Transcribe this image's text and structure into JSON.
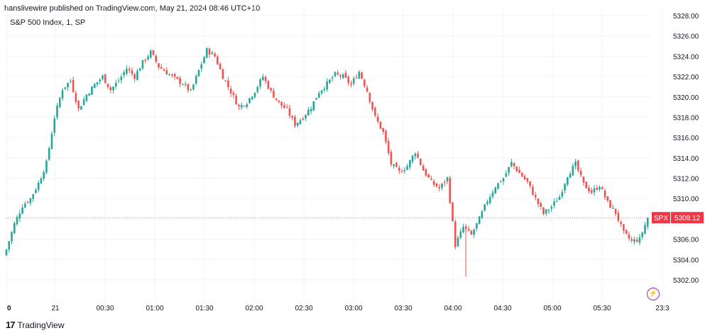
{
  "header": {
    "publisher": "hanslivewire published on TradingView.com, May 21, 2024 08:46 UTC+10",
    "symbol_line": "S&P 500 Index, 1, SP"
  },
  "brand": {
    "logo": "17",
    "name": "TradingView"
  },
  "icons": {
    "lightning": "lightning-icon"
  },
  "colors": {
    "up": "#26a69a",
    "down": "#ef5350",
    "grid": "#f0f3fa",
    "price_tag": "#f23645"
  },
  "chart_data": {
    "type": "candlestick",
    "title": "S&P 500 Index, 1, SP",
    "ylim": [
      5301,
      5328
    ],
    "y_ticks": [
      "5302.00",
      "5304.00",
      "5306.00",
      "5308.00",
      "5310.00",
      "5312.00",
      "5314.00",
      "5316.00",
      "5318.00",
      "5320.00",
      "5322.00",
      "5324.00",
      "5326.00",
      "5328.00"
    ],
    "x_ticks": [
      "0",
      "21",
      "00:30",
      "01:00",
      "01:30",
      "02:00",
      "02:30",
      "03:00",
      "03:30",
      "04:00",
      "04:30",
      "05:00",
      "05:30",
      "23:3"
    ],
    "last_price": {
      "label": "SPX",
      "value": "5308.12"
    },
    "close_path": [
      [
        0,
        5305.0
      ],
      [
        3,
        5307.5
      ],
      [
        6,
        5309.3
      ],
      [
        9,
        5310.0
      ],
      [
        12,
        5311.5
      ],
      [
        15,
        5313.5
      ],
      [
        18,
        5318.0
      ],
      [
        21,
        5320.8
      ],
      [
        24,
        5321.6
      ],
      [
        27,
        5318.8
      ],
      [
        30,
        5320.2
      ],
      [
        33,
        5321.2
      ],
      [
        36,
        5322.0
      ],
      [
        39,
        5320.7
      ],
      [
        42,
        5321.6
      ],
      [
        45,
        5322.8
      ],
      [
        48,
        5322.0
      ],
      [
        51,
        5323.4
      ],
      [
        54,
        5324.4
      ],
      [
        57,
        5323.0
      ],
      [
        60,
        5322.4
      ],
      [
        63,
        5321.8
      ],
      [
        66,
        5321.3
      ],
      [
        69,
        5320.5
      ],
      [
        72,
        5322.6
      ],
      [
        75,
        5324.6
      ],
      [
        78,
        5324.0
      ],
      [
        81,
        5322.0
      ],
      [
        84,
        5320.5
      ],
      [
        87,
        5319.0
      ],
      [
        90,
        5319.5
      ],
      [
        93,
        5320.6
      ],
      [
        96,
        5322.0
      ],
      [
        99,
        5320.5
      ],
      [
        102,
        5319.4
      ],
      [
        105,
        5318.7
      ],
      [
        108,
        5317.3
      ],
      [
        111,
        5318.0
      ],
      [
        114,
        5319.0
      ],
      [
        117,
        5320.5
      ],
      [
        120,
        5321.3
      ],
      [
        123,
        5322.2
      ],
      [
        126,
        5322.0
      ],
      [
        129,
        5321.2
      ],
      [
        132,
        5322.5
      ],
      [
        135,
        5320.6
      ],
      [
        138,
        5318.0
      ],
      [
        141,
        5316.5
      ],
      [
        144,
        5313.4
      ],
      [
        147,
        5312.6
      ],
      [
        150,
        5313.2
      ],
      [
        153,
        5314.6
      ],
      [
        156,
        5312.8
      ],
      [
        159,
        5311.6
      ],
      [
        162,
        5311.0
      ],
      [
        165,
        5312.0
      ],
      [
        168,
        5305.4
      ],
      [
        171,
        5307.2
      ],
      [
        174,
        5306.4
      ],
      [
        177,
        5308.0
      ],
      [
        180,
        5309.8
      ],
      [
        183,
        5311.2
      ],
      [
        186,
        5312.0
      ],
      [
        189,
        5313.5
      ],
      [
        192,
        5312.5
      ],
      [
        195,
        5311.6
      ],
      [
        198,
        5310.0
      ],
      [
        201,
        5308.5
      ],
      [
        204,
        5309.2
      ],
      [
        207,
        5310.2
      ],
      [
        210,
        5312.3
      ],
      [
        213,
        5313.4
      ],
      [
        216,
        5311.4
      ],
      [
        219,
        5310.6
      ],
      [
        222,
        5311.3
      ],
      [
        225,
        5309.6
      ],
      [
        228,
        5308.6
      ],
      [
        231,
        5306.6
      ],
      [
        234,
        5305.8
      ],
      [
        237,
        5306.0
      ],
      [
        240,
        5308.1
      ]
    ]
  }
}
